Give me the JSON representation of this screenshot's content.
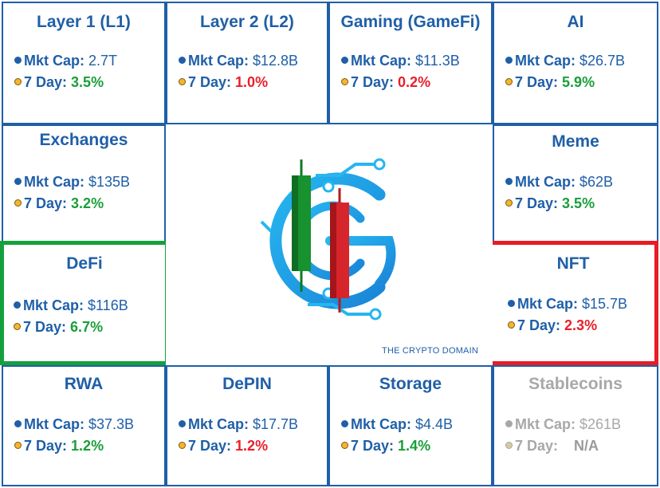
{
  "cells": {
    "l1": {
      "title": "Layer 1 (L1)",
      "mkt_label": "Mkt Cap:",
      "mkt": "2.7T",
      "day_label": "7 Day:",
      "day": "3.5%"
    },
    "l2": {
      "title": "Layer 2 (L2)",
      "mkt_label": "Mkt Cap:",
      "mkt": "$12.8B",
      "day_label": "7 Day:",
      "day": "1.0%"
    },
    "gaming": {
      "title": "Gaming (GameFi)",
      "mkt_label": "Mkt Cap:",
      "mkt": "$11.3B",
      "day_label": "7 Day:",
      "day": "0.2%"
    },
    "ai": {
      "title": "AI",
      "mkt_label": "Mkt Cap:",
      "mkt": "$26.7B",
      "day_label": "7 Day:",
      "day": "5.9%"
    },
    "exchanges": {
      "title": "Exchanges",
      "mkt_label": "Mkt Cap:",
      "mkt": "$135B",
      "day_label": "7 Day:",
      "day": "3.2%"
    },
    "meme": {
      "title": "Meme",
      "mkt_label": "Mkt Cap:",
      "mkt": "$62B",
      "day_label": "7 Day:",
      "day": "3.5%"
    },
    "defi": {
      "title": "DeFi",
      "mkt_label": "Mkt Cap:",
      "mkt": "$116B",
      "day_label": "7 Day:",
      "day": "6.7%"
    },
    "nft": {
      "title": "NFT",
      "mkt_label": "Mkt Cap:",
      "mkt": "$15.7B",
      "day_label": "7 Day:",
      "day": "2.3%"
    },
    "rwa": {
      "title": "RWA",
      "mkt_label": "Mkt Cap:",
      "mkt": "$37.3B",
      "day_label": "7 Day:",
      "day": "1.2%"
    },
    "depin": {
      "title": "DePIN",
      "mkt_label": "Mkt Cap:",
      "mkt": "$17.7B",
      "day_label": "7 Day:",
      "day": "1.2%"
    },
    "storage": {
      "title": "Storage",
      "mkt_label": "Mkt Cap:",
      "mkt": "$4.4B",
      "day_label": "7 Day:",
      "day": "1.4%"
    },
    "stablecoins": {
      "title": "Stablecoins",
      "mkt_label": "Mkt Cap:",
      "mkt": "$261B",
      "day_label": "7 Day:",
      "day": "N/A"
    }
  },
  "brand": {
    "text": "THE CRYPTO DOMAIN"
  },
  "colors": {
    "text_blue": "#1f5fa8",
    "positive": "#1a9e3a",
    "negative": "#e8202a",
    "muted": "#a8a8a8",
    "highlight_green": "#14a03c",
    "highlight_red": "#e81c24"
  },
  "icons": {
    "market_cap_bullet": "blue-dot-icon",
    "seven_day_bullet": "orange-dot-icon",
    "logo": "crypto-domain-candlestick-logo"
  }
}
